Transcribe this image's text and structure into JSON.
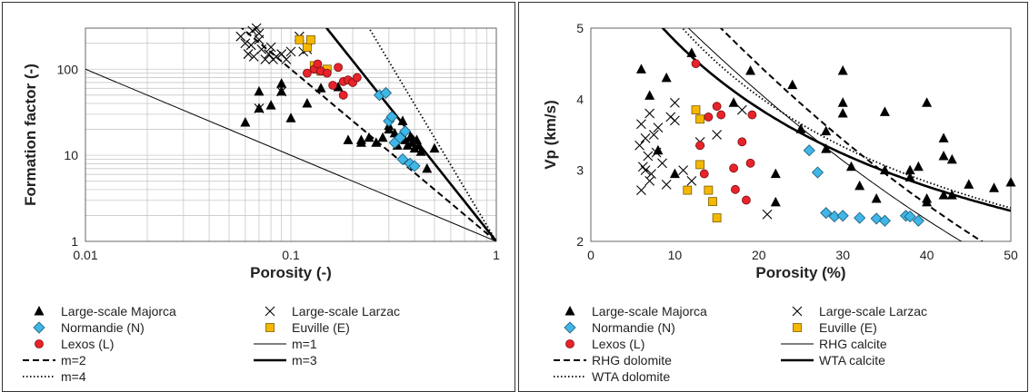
{
  "colors": {
    "majorca": "#000000",
    "larzac": "#000000",
    "normandie": "#3fb6e6",
    "euville": "#f5b800",
    "lexos": "#e8232a",
    "grid": "#c8c8c8",
    "model": "#000000"
  },
  "chart_data": [
    {
      "type": "scatter",
      "xscale": "log",
      "yscale": "log",
      "xlabel": "Porosity (-)",
      "ylabel": "Formation factor (-)",
      "xlim": [
        0.01,
        1
      ],
      "ylim": [
        1,
        300
      ],
      "x_ticks": [
        {
          "v": 0.01,
          "label": "0.01"
        },
        {
          "v": 0.1,
          "label": "0.1"
        },
        {
          "v": 1,
          "label": "1"
        }
      ],
      "y_ticks": [
        {
          "v": 1,
          "label": "1"
        },
        {
          "v": 10,
          "label": "10"
        },
        {
          "v": 100,
          "label": "100"
        }
      ],
      "grid": true,
      "legend_position": "below",
      "series": [
        {
          "name": "Large-scale Majorca",
          "marker": "triangle",
          "color_key": "majorca",
          "points": [
            [
              0.06,
              24
            ],
            [
              0.07,
              55
            ],
            [
              0.07,
              35
            ],
            [
              0.08,
              38
            ],
            [
              0.09,
              68
            ],
            [
              0.09,
              55
            ],
            [
              0.1,
              27
            ],
            [
              0.12,
              40
            ],
            [
              0.14,
              60
            ],
            [
              0.17,
              62
            ],
            [
              0.19,
              15
            ],
            [
              0.22,
              14
            ],
            [
              0.22,
              15
            ],
            [
              0.24,
              16
            ],
            [
              0.26,
              14
            ],
            [
              0.28,
              16
            ],
            [
              0.3,
              22
            ],
            [
              0.3,
              20
            ],
            [
              0.32,
              18
            ],
            [
              0.33,
              13
            ],
            [
              0.35,
              25
            ],
            [
              0.36,
              15
            ],
            [
              0.37,
              13
            ],
            [
              0.38,
              16
            ],
            [
              0.39,
              14
            ],
            [
              0.4,
              12
            ],
            [
              0.41,
              15
            ],
            [
              0.42,
              13
            ],
            [
              0.43,
              11
            ],
            [
              0.46,
              7
            ],
            [
              0.5,
              12
            ]
          ]
        },
        {
          "name": "Large-scale Larzac",
          "marker": "x",
          "color_key": "larzac",
          "points": [
            [
              0.057,
              240
            ],
            [
              0.06,
              200
            ],
            [
              0.062,
              150
            ],
            [
              0.064,
              190
            ],
            [
              0.065,
              280
            ],
            [
              0.066,
              140
            ],
            [
              0.068,
              300
            ],
            [
              0.07,
              260
            ],
            [
              0.07,
              220
            ],
            [
              0.072,
              170
            ],
            [
              0.075,
              130
            ],
            [
              0.078,
              150
            ],
            [
              0.08,
              180
            ],
            [
              0.082,
              130
            ],
            [
              0.085,
              140
            ],
            [
              0.09,
              150
            ],
            [
              0.095,
              130
            ],
            [
              0.1,
              160
            ],
            [
              0.11,
              240
            ],
            [
              0.115,
              160
            ],
            [
              0.12,
              170
            ],
            [
              0.07,
              35
            ],
            [
              0.09,
              55
            ]
          ]
        },
        {
          "name": "Normandie (N)",
          "marker": "diamond",
          "color_key": "normandie",
          "points": [
            [
              0.27,
              50
            ],
            [
              0.29,
              53
            ],
            [
              0.3,
              25
            ],
            [
              0.31,
              28
            ],
            [
              0.32,
              14
            ],
            [
              0.34,
              16
            ],
            [
              0.35,
              9
            ],
            [
              0.36,
              19
            ],
            [
              0.38,
              8
            ],
            [
              0.4,
              7.5
            ]
          ]
        },
        {
          "name": "Euville (E)",
          "marker": "square",
          "color_key": "euville",
          "points": [
            [
              0.11,
              220
            ],
            [
              0.12,
              180
            ],
            [
              0.125,
              220
            ],
            [
              0.13,
              110
            ],
            [
              0.14,
              95
            ],
            [
              0.15,
              100
            ]
          ]
        },
        {
          "name": "Lexos (L)",
          "marker": "circle",
          "color_key": "lexos",
          "points": [
            [
              0.12,
              90
            ],
            [
              0.13,
              100
            ],
            [
              0.135,
              115
            ],
            [
              0.14,
              95
            ],
            [
              0.15,
              90
            ],
            [
              0.16,
              65
            ],
            [
              0.17,
              105
            ],
            [
              0.18,
              72
            ],
            [
              0.18,
              50
            ],
            [
              0.19,
              75
            ],
            [
              0.2,
              70
            ],
            [
              0.21,
              80
            ]
          ]
        }
      ],
      "lines": [
        {
          "name": "m=1",
          "style": "thin",
          "m": 1
        },
        {
          "name": "m=2",
          "style": "dashed",
          "m": 2
        },
        {
          "name": "m=3",
          "style": "thick",
          "m": 3
        },
        {
          "name": "m=4",
          "style": "dotted",
          "m": 4
        }
      ]
    },
    {
      "type": "scatter",
      "xlabel": "Porosity (%)",
      "ylabel": "Vp (km/s)",
      "xlim": [
        0,
        50
      ],
      "ylim": [
        2,
        5
      ],
      "x_ticks": [
        {
          "v": 0,
          "label": "0"
        },
        {
          "v": 10,
          "label": "10"
        },
        {
          "v": 20,
          "label": "20"
        },
        {
          "v": 30,
          "label": "30"
        },
        {
          "v": 40,
          "label": "40"
        },
        {
          "v": 50,
          "label": "50"
        }
      ],
      "y_ticks": [
        {
          "v": 2,
          "label": "2"
        },
        {
          "v": 3,
          "label": "3"
        },
        {
          "v": 4,
          "label": "4"
        },
        {
          "v": 5,
          "label": "5"
        }
      ],
      "grid": false,
      "legend_position": "below",
      "series": [
        {
          "name": "Large-scale Majorca",
          "marker": "triangle",
          "color_key": "majorca",
          "points": [
            [
              6,
              4.42
            ],
            [
              7,
              4.05
            ],
            [
              8,
              3.28
            ],
            [
              9,
              4.3
            ],
            [
              10,
              2.95
            ],
            [
              12,
              4.65
            ],
            [
              17,
              3.95
            ],
            [
              19,
              4.4
            ],
            [
              22,
              2.95
            ],
            [
              22,
              2.55
            ],
            [
              24,
              4.2
            ],
            [
              25,
              3.58
            ],
            [
              28,
              3.3
            ],
            [
              28,
              3.55
            ],
            [
              30,
              4.4
            ],
            [
              30,
              3.95
            ],
            [
              30,
              3.8
            ],
            [
              31,
              3.05
            ],
            [
              32,
              2.78
            ],
            [
              34,
              2.6
            ],
            [
              35,
              3.82
            ],
            [
              35,
              3.0
            ],
            [
              38,
              3.0
            ],
            [
              38,
              2.9
            ],
            [
              39,
              3.05
            ],
            [
              40,
              3.95
            ],
            [
              40,
              2.6
            ],
            [
              40,
              2.55
            ],
            [
              42,
              3.45
            ],
            [
              42,
              3.2
            ],
            [
              43,
              3.15
            ],
            [
              43,
              2.65
            ],
            [
              42,
              2.65
            ],
            [
              45,
              2.8
            ],
            [
              48,
              2.75
            ],
            [
              50,
              2.83
            ]
          ]
        },
        {
          "name": "Large-scale Larzac",
          "marker": "x",
          "color_key": "larzac",
          "points": [
            [
              5.8,
              3.35
            ],
            [
              6,
              3.65
            ],
            [
              6.2,
              3.05
            ],
            [
              6.5,
              3.45
            ],
            [
              6.8,
              3.2
            ],
            [
              7,
              3.8
            ],
            [
              7.2,
              2.95
            ],
            [
              7.5,
              3.5
            ],
            [
              7.8,
              3.25
            ],
            [
              8,
              3.6
            ],
            [
              8.5,
              3.1
            ],
            [
              9,
              2.8
            ],
            [
              9.5,
              3.75
            ],
            [
              10,
              3.95
            ],
            [
              10,
              3.7
            ],
            [
              11,
              3.0
            ],
            [
              12,
              2.85
            ],
            [
              13,
              3.4
            ],
            [
              15,
              3.5
            ],
            [
              18,
              3.85
            ],
            [
              21,
              2.38
            ],
            [
              6,
              2.72
            ],
            [
              6.5,
              3.0
            ],
            [
              7,
              2.85
            ]
          ]
        },
        {
          "name": "Normandie (N)",
          "marker": "diamond",
          "color_key": "normandie",
          "points": [
            [
              26,
              3.28
            ],
            [
              27,
              2.97
            ],
            [
              28,
              2.4
            ],
            [
              29,
              2.35
            ],
            [
              30,
              2.36
            ],
            [
              32,
              2.33
            ],
            [
              34,
              2.32
            ],
            [
              35,
              2.29
            ],
            [
              37.5,
              2.36
            ],
            [
              38,
              2.35
            ],
            [
              39,
              2.29
            ]
          ]
        },
        {
          "name": "Euville (E)",
          "marker": "square",
          "color_key": "euville",
          "points": [
            [
              12.5,
              3.85
            ],
            [
              13,
              3.72
            ],
            [
              13,
              3.08
            ],
            [
              14,
              2.72
            ],
            [
              14.5,
              2.56
            ],
            [
              15,
              2.33
            ],
            [
              11.5,
              2.72
            ]
          ]
        },
        {
          "name": "Lexos (L)",
          "marker": "circle",
          "color_key": "lexos",
          "points": [
            [
              12.5,
              4.5
            ],
            [
              13,
              3.35
            ],
            [
              13.5,
              2.95
            ],
            [
              14,
              3.75
            ],
            [
              15,
              3.9
            ],
            [
              15.5,
              3.78
            ],
            [
              17,
              3.03
            ],
            [
              17.2,
              2.73
            ],
            [
              18,
              3.4
            ],
            [
              18.5,
              2.58
            ],
            [
              19,
              3.1
            ],
            [
              19.2,
              3.78
            ]
          ]
        }
      ],
      "lines": [
        {
          "name": "RHG calcite",
          "style": "thin",
          "v0": 6.4
        },
        {
          "name": "RHG dolomite",
          "style": "dashed",
          "v0": 7.0
        },
        {
          "name": "WTA calcite",
          "style": "thick",
          "vm": 6.4,
          "vf": 1.5
        },
        {
          "name": "WTA dolomite",
          "style": "dotted",
          "vm": 7.0,
          "vf": 1.5
        }
      ]
    }
  ]
}
